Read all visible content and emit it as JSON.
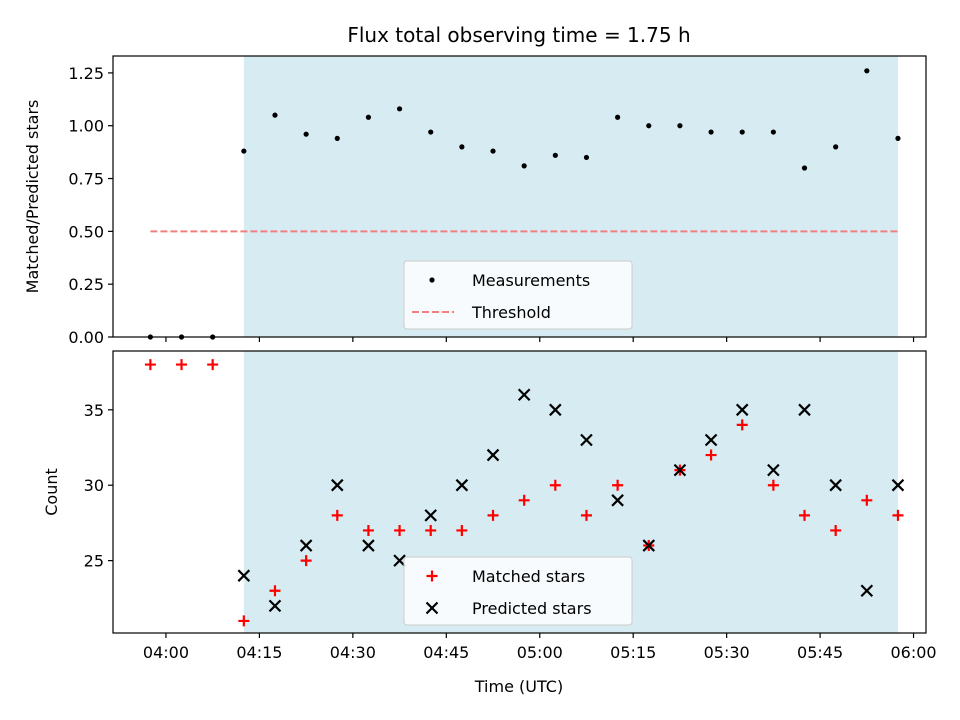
{
  "chart_data": {
    "title": "Flux total observing time = 1.75 h",
    "xlabel": "Time (UTC)",
    "xlim_min": [
      -8.5,
      122
    ],
    "x_ticks": [
      {
        "label": "04:00",
        "min": 0
      },
      {
        "label": "04:15",
        "min": 15
      },
      {
        "label": "04:30",
        "min": 30
      },
      {
        "label": "04:45",
        "min": 45
      },
      {
        "label": "05:00",
        "min": 60
      },
      {
        "label": "05:15",
        "min": 75
      },
      {
        "label": "05:30",
        "min": 90
      },
      {
        "label": "05:45",
        "min": 105
      },
      {
        "label": "06:00",
        "min": 120
      }
    ],
    "observing_window_min": [
      12.5,
      117.5
    ],
    "observing_window_color": "#add8e6",
    "panels": [
      {
        "type": "scatter",
        "ylabel": "Matched/Predicted stars",
        "ylim": [
          0,
          1.33
        ],
        "y_ticks": [
          "0.00",
          "0.25",
          "0.50",
          "0.75",
          "1.00",
          "1.25"
        ],
        "legend_location": "lower center",
        "series": [
          {
            "name": "Measurements",
            "marker": "dot",
            "color": "#000000",
            "x_min": [
              -2.5,
              2.5,
              7.5,
              12.5,
              17.5,
              22.5,
              27.5,
              32.5,
              37.5,
              42.5,
              47.5,
              52.5,
              57.5,
              62.5,
              67.5,
              72.5,
              77.5,
              82.5,
              87.5,
              92.5,
              97.5,
              102.5,
              107.5,
              112.5,
              117.5
            ],
            "y": [
              0.0,
              0.0,
              0.0,
              0.88,
              1.05,
              0.96,
              0.94,
              1.04,
              1.08,
              0.97,
              0.9,
              0.88,
              0.81,
              0.86,
              0.85,
              1.04,
              1.0,
              1.0,
              0.97,
              0.97,
              0.97,
              0.8,
              0.9,
              1.26,
              0.94
            ]
          }
        ],
        "threshold": {
          "name": "Threshold",
          "value": 0.5,
          "x_range_min": [
            -2.5,
            117.5
          ],
          "color": "#f08080"
        }
      },
      {
        "type": "scatter",
        "ylabel": "Count",
        "ylim": [
          20.2,
          38.9
        ],
        "y_ticks": [
          "25",
          "30",
          "35"
        ],
        "legend_location": "lower center",
        "series": [
          {
            "name": "Matched stars",
            "marker": "+",
            "color": "#ff0000",
            "x_min": [
              -2.5,
              2.5,
              7.5,
              12.5,
              17.5,
              22.5,
              27.5,
              32.5,
              37.5,
              42.5,
              47.5,
              52.5,
              57.5,
              62.5,
              67.5,
              72.5,
              77.5,
              82.5,
              87.5,
              92.5,
              97.5,
              102.5,
              107.5,
              112.5,
              117.5
            ],
            "y": [
              38,
              38,
              38,
              21,
              23,
              25,
              28,
              27,
              27,
              27,
              27,
              28,
              29,
              30,
              28,
              30,
              26,
              31,
              32,
              34,
              30,
              28,
              27,
              29,
              28
            ]
          },
          {
            "name": "Predicted stars",
            "marker": "x",
            "color": "#000000",
            "x_min": [
              12.5,
              17.5,
              22.5,
              27.5,
              32.5,
              37.5,
              42.5,
              47.5,
              52.5,
              57.5,
              62.5,
              67.5,
              72.5,
              77.5,
              82.5,
              87.5,
              92.5,
              97.5,
              102.5,
              107.5,
              112.5,
              117.5
            ],
            "y": [
              24,
              22,
              26,
              30,
              26,
              25,
              28,
              30,
              32,
              36,
              35,
              33,
              29,
              26,
              31,
              33,
              35,
              31,
              35,
              30,
              23,
              30
            ]
          }
        ]
      }
    ]
  }
}
